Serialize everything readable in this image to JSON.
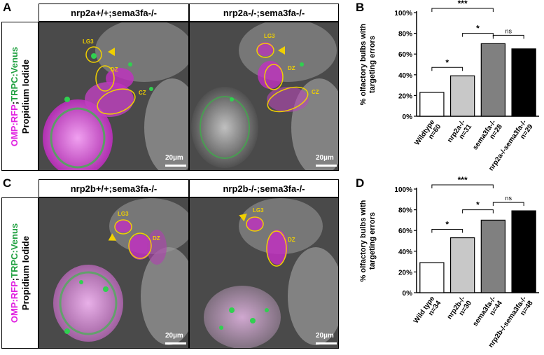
{
  "panels": {
    "A": {
      "letter": "A",
      "side_label_line1_parts": [
        "OMP:RFP",
        ";",
        "TRPC:Venus"
      ],
      "side_label_line2": "Propidium Iodide",
      "headers": [
        "nrp2a+/+;sema3fa-/-",
        "nrp2a-/-;sema3fa-/-"
      ],
      "scale_label": "20µm",
      "annotations_left": [
        "LG3",
        "DZ",
        "CZ"
      ],
      "annotations_right": [
        "LG3",
        "DZ",
        "CZ"
      ]
    },
    "C": {
      "letter": "C",
      "side_label_line1_parts": [
        "OMP:RFP",
        ";",
        "TRPC:Venus"
      ],
      "side_label_line2": "Propidium Iodide",
      "headers": [
        "nrp2b+/+;sema3fa-/-",
        "nrp2b-/-;sema3fa-/-"
      ],
      "scale_label": "20µm",
      "annotations_left": [
        "LG3",
        "DZ"
      ],
      "annotations_right": [
        "LG3",
        "DZ"
      ]
    },
    "B": {
      "letter": "B"
    },
    "D": {
      "letter": "D"
    }
  },
  "colors": {
    "magenta": "#e020e0",
    "green": "#20c040",
    "annotation_yellow": "#f0d000"
  },
  "chart_data": [
    {
      "panel": "B",
      "type": "bar",
      "ylabel": "% olfactory bulbs with targeting errors",
      "ylim": [
        0,
        100
      ],
      "yticks": [
        "0%",
        "20%",
        "40%",
        "60%",
        "80%",
        "100%"
      ],
      "categories": [
        "Wildtype",
        "nrp2a-/-",
        "sema3fa-/-",
        "nrp2a-/-sema3fa-/-"
      ],
      "n_labels": [
        "n=60",
        "n=31",
        "n=28",
        "n=29"
      ],
      "values": [
        23,
        39,
        70,
        65
      ],
      "bar_colors": [
        "#ffffff",
        "#c8c8c8",
        "#808080",
        "#000000"
      ],
      "significance": [
        {
          "from": 0,
          "to": 1,
          "label": "*"
        },
        {
          "from": 0,
          "to": 2,
          "label": "***"
        },
        {
          "from": 1,
          "to": 2,
          "label": "*"
        },
        {
          "from": 2,
          "to": 3,
          "label": "ns"
        }
      ]
    },
    {
      "panel": "D",
      "type": "bar",
      "ylabel": "% olfactory bulbs with targeting errors",
      "ylim": [
        0,
        100
      ],
      "yticks": [
        "0%",
        "20%",
        "40%",
        "60%",
        "80%",
        "100%"
      ],
      "categories": [
        "Wild type",
        "nrp2b-/-",
        "sema3fa-/-",
        "nrp2b-/-sema3fa-/-"
      ],
      "n_labels": [
        "n=34",
        "n=30",
        "n=44",
        "n=48"
      ],
      "values": [
        29,
        53,
        70,
        79
      ],
      "bar_colors": [
        "#ffffff",
        "#c8c8c8",
        "#808080",
        "#000000"
      ],
      "significance": [
        {
          "from": 0,
          "to": 1,
          "label": "*"
        },
        {
          "from": 0,
          "to": 2,
          "label": "***"
        },
        {
          "from": 1,
          "to": 2,
          "label": "*"
        },
        {
          "from": 2,
          "to": 3,
          "label": "ns"
        }
      ]
    }
  ]
}
